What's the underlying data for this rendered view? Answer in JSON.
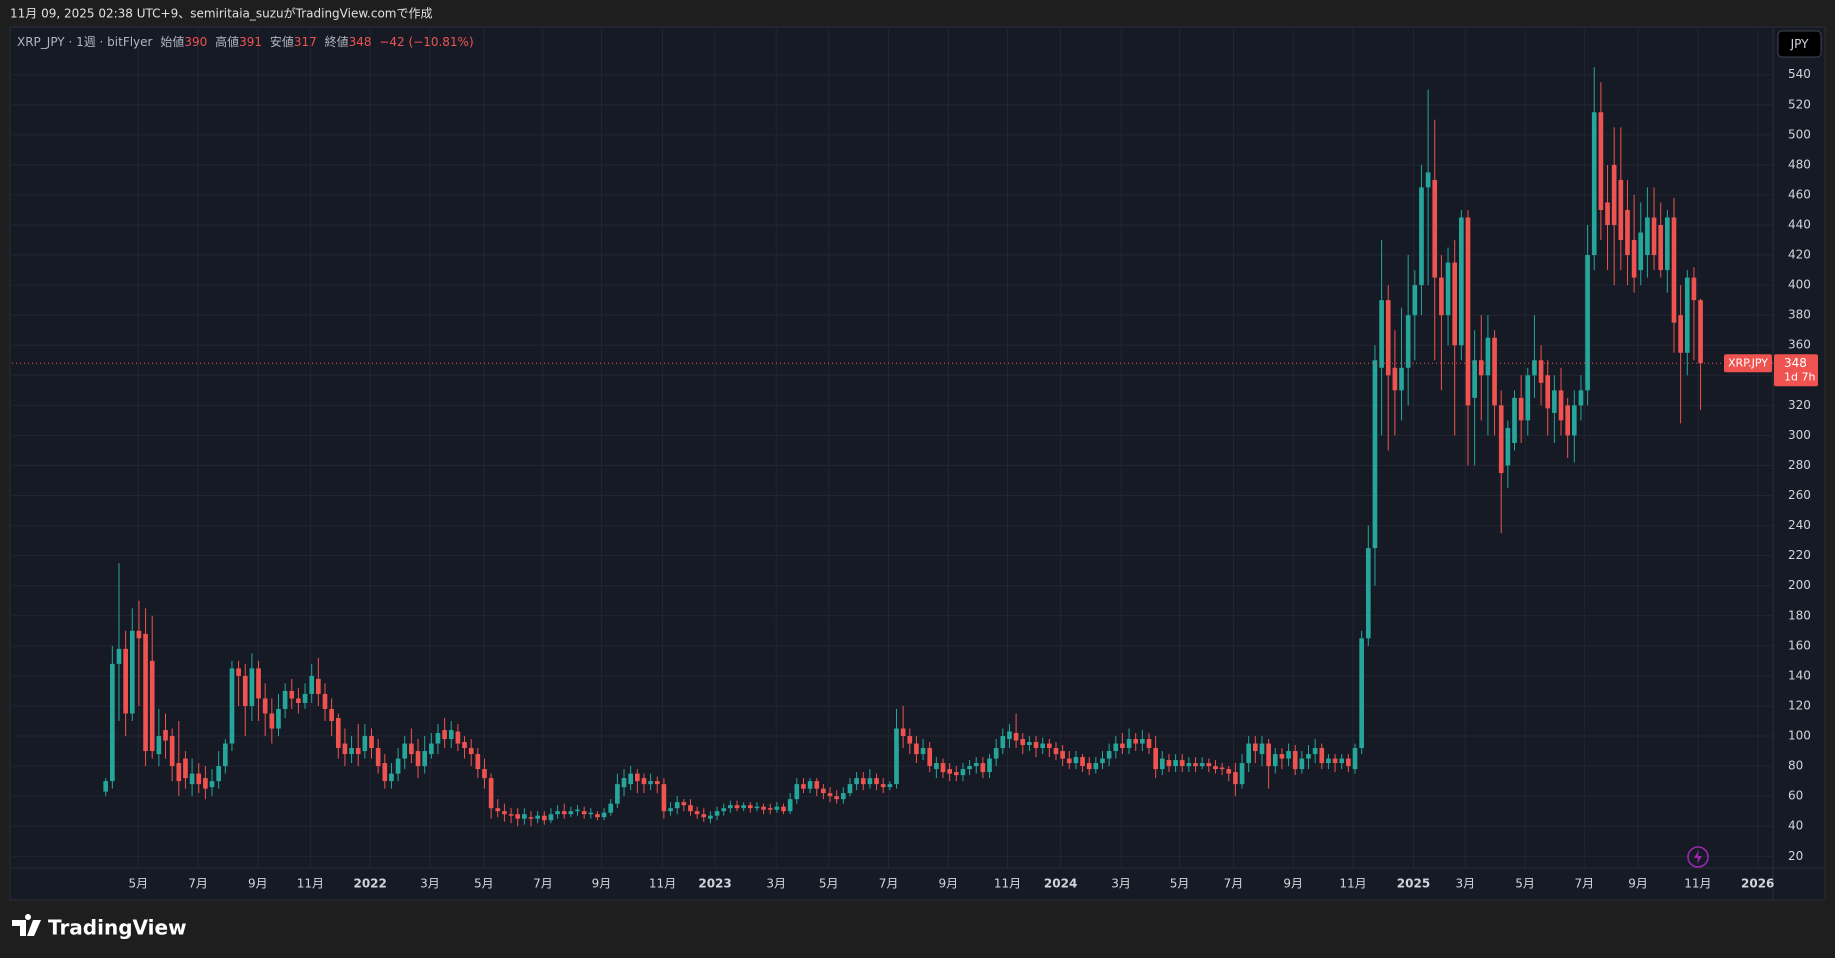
{
  "byline": "11月 09, 2025 02:38 UTC+9、semiritaia_suzuがTradingView.comで作成",
  "footer_brand": "TradingView",
  "chart_data": {
    "type": "candlestick",
    "legend": {
      "symbol": "XRP_JPY · 1週 · bitFlyer",
      "open": "始値",
      "high": "高値",
      "low": "安値",
      "close": "終値",
      "change": "−42 (−10.81%)"
    },
    "currency": "JPY",
    "last_label": "XRP.JPY",
    "countdown": "1d 7h",
    "up_color": "#26a69a",
    "down_color": "#ef5350",
    "grid": true,
    "xlim": [
      -14.1,
      250.9
    ],
    "xticks": [
      {
        "value": 4.9,
        "label": "5月"
      },
      {
        "value": 13.9,
        "label": "7月"
      },
      {
        "value": 22.9,
        "label": "9月"
      },
      {
        "value": 30.8,
        "label": "11月"
      },
      {
        "value": 39.8,
        "label": "2022"
      },
      {
        "value": 48.8,
        "label": "3月"
      },
      {
        "value": 56.9,
        "label": "5月"
      },
      {
        "value": 65.8,
        "label": "7月"
      },
      {
        "value": 74.6,
        "label": "9月"
      },
      {
        "value": 83.8,
        "label": "11月"
      },
      {
        "value": 91.7,
        "label": "2023"
      },
      {
        "value": 100.9,
        "label": "3月"
      },
      {
        "value": 108.8,
        "label": "5月"
      },
      {
        "value": 117.8,
        "label": "7月"
      },
      {
        "value": 126.8,
        "label": "9月"
      },
      {
        "value": 135.7,
        "label": "11月"
      },
      {
        "value": 143.7,
        "label": "2024"
      },
      {
        "value": 152.8,
        "label": "3月"
      },
      {
        "value": 161.6,
        "label": "5月"
      },
      {
        "value": 169.7,
        "label": "7月"
      },
      {
        "value": 178.7,
        "label": "9月"
      },
      {
        "value": 187.7,
        "label": "11月"
      },
      {
        "value": 196.8,
        "label": "2025"
      },
      {
        "value": 204.6,
        "label": "3月"
      },
      {
        "value": 213.6,
        "label": "5月"
      },
      {
        "value": 222.5,
        "label": "7月"
      },
      {
        "value": 230.6,
        "label": "9月"
      },
      {
        "value": 239.6,
        "label": "11月"
      },
      {
        "value": 248.6,
        "label": "2026"
      }
    ],
    "ylim": [
      12.2,
      570.4
    ],
    "yticks": [
      20,
      40,
      60,
      80,
      100,
      120,
      140,
      160,
      180,
      200,
      220,
      240,
      260,
      280,
      300,
      320,
      340,
      360,
      380,
      400,
      420,
      440,
      460,
      480,
      500,
      520,
      540
    ],
    "candles": [
      [
        63,
        72,
        60,
        70
      ],
      [
        70,
        160,
        65,
        148
      ],
      [
        148,
        215,
        110,
        158
      ],
      [
        158,
        170,
        100,
        115
      ],
      [
        115,
        185,
        110,
        170
      ],
      [
        170,
        190,
        120,
        165
      ],
      [
        168,
        185,
        80,
        90
      ],
      [
        150,
        180,
        85,
        90
      ],
      [
        88,
        118,
        80,
        100
      ],
      [
        104,
        115,
        85,
        97
      ],
      [
        100,
        105,
        70,
        80
      ],
      [
        82,
        110,
        60,
        70
      ],
      [
        85,
        90,
        65,
        72
      ],
      [
        68,
        85,
        60,
        75
      ],
      [
        75,
        82,
        62,
        68
      ],
      [
        72,
        80,
        58,
        65
      ],
      [
        66,
        78,
        60,
        70
      ],
      [
        70,
        90,
        65,
        80
      ],
      [
        80,
        98,
        75,
        95
      ],
      [
        95,
        150,
        90,
        145
      ],
      [
        145,
        150,
        120,
        140
      ],
      [
        140,
        148,
        100,
        120
      ],
      [
        120,
        155,
        110,
        145
      ],
      [
        145,
        150,
        110,
        125
      ],
      [
        125,
        135,
        100,
        115
      ],
      [
        115,
        125,
        95,
        105
      ],
      [
        105,
        128,
        100,
        118
      ],
      [
        118,
        135,
        112,
        130
      ],
      [
        130,
        138,
        118,
        125
      ],
      [
        125,
        132,
        115,
        122
      ],
      [
        122,
        135,
        118,
        128
      ],
      [
        128,
        148,
        122,
        140
      ],
      [
        138,
        152,
        120,
        128
      ],
      [
        128,
        135,
        110,
        118
      ],
      [
        118,
        125,
        100,
        110
      ],
      [
        112,
        115,
        85,
        92
      ],
      [
        95,
        105,
        80,
        88
      ],
      [
        88,
        100,
        82,
        92
      ],
      [
        92,
        108,
        80,
        88
      ],
      [
        90,
        108,
        85,
        100
      ],
      [
        100,
        105,
        85,
        92
      ],
      [
        92,
        98,
        75,
        80
      ],
      [
        82,
        88,
        65,
        70
      ],
      [
        70,
        82,
        65,
        75
      ],
      [
        75,
        92,
        70,
        85
      ],
      [
        85,
        100,
        78,
        95
      ],
      [
        95,
        105,
        82,
        88
      ],
      [
        90,
        98,
        72,
        80
      ],
      [
        80,
        100,
        75,
        90
      ],
      [
        88,
        102,
        85,
        95
      ],
      [
        95,
        108,
        88,
        102
      ],
      [
        104,
        112,
        92,
        98
      ],
      [
        98,
        110,
        92,
        104
      ],
      [
        103,
        108,
        90,
        95
      ],
      [
        96,
        100,
        85,
        92
      ],
      [
        92,
        98,
        80,
        88
      ],
      [
        88,
        92,
        72,
        78
      ],
      [
        78,
        85,
        65,
        72
      ],
      [
        72,
        75,
        45,
        52
      ],
      [
        52,
        58,
        46,
        50
      ],
      [
        50,
        55,
        43,
        48
      ],
      [
        48,
        52,
        42,
        47
      ],
      [
        48,
        52,
        40,
        45
      ],
      [
        45,
        52,
        41,
        48
      ],
      [
        46,
        50,
        40,
        45
      ],
      [
        45,
        50,
        42,
        47
      ],
      [
        47,
        50,
        41,
        44
      ],
      [
        44,
        52,
        42,
        48
      ],
      [
        48,
        54,
        45,
        50
      ],
      [
        50,
        55,
        45,
        48
      ],
      [
        48,
        53,
        46,
        50
      ],
      [
        50,
        54,
        47,
        51
      ],
      [
        50,
        53,
        45,
        48
      ],
      [
        48,
        52,
        45,
        49
      ],
      [
        48,
        50,
        44,
        46
      ],
      [
        46,
        52,
        44,
        49
      ],
      [
        49,
        58,
        47,
        55
      ],
      [
        55,
        75,
        52,
        68
      ],
      [
        66,
        78,
        60,
        72
      ],
      [
        68,
        80,
        64,
        75
      ],
      [
        75,
        78,
        62,
        70
      ],
      [
        72,
        75,
        62,
        68
      ],
      [
        68,
        75,
        64,
        70
      ],
      [
        70,
        73,
        62,
        68
      ],
      [
        68,
        72,
        45,
        50
      ],
      [
        50,
        56,
        47,
        52
      ],
      [
        52,
        60,
        48,
        56
      ],
      [
        56,
        58,
        50,
        54
      ],
      [
        54,
        58,
        47,
        50
      ],
      [
        50,
        53,
        45,
        48
      ],
      [
        48,
        52,
        43,
        46
      ],
      [
        45,
        50,
        42,
        47
      ],
      [
        47,
        53,
        44,
        50
      ],
      [
        50,
        55,
        47,
        52
      ],
      [
        52,
        57,
        49,
        54
      ],
      [
        54,
        57,
        50,
        52
      ],
      [
        52,
        56,
        50,
        54
      ],
      [
        54,
        56,
        49,
        52
      ],
      [
        52,
        56,
        50,
        53
      ],
      [
        53,
        55,
        48,
        51
      ],
      [
        52,
        55,
        48,
        51
      ],
      [
        51,
        56,
        49,
        53
      ],
      [
        53,
        55,
        48,
        50
      ],
      [
        50,
        62,
        48,
        58
      ],
      [
        58,
        72,
        55,
        68
      ],
      [
        68,
        72,
        62,
        65
      ],
      [
        65,
        72,
        62,
        70
      ],
      [
        70,
        72,
        60,
        65
      ],
      [
        65,
        68,
        58,
        62
      ],
      [
        62,
        66,
        56,
        60
      ],
      [
        60,
        64,
        55,
        58
      ],
      [
        58,
        66,
        55,
        62
      ],
      [
        62,
        72,
        60,
        68
      ],
      [
        68,
        76,
        64,
        72
      ],
      [
        72,
        76,
        64,
        68
      ],
      [
        68,
        78,
        65,
        72
      ],
      [
        72,
        75,
        64,
        68
      ],
      [
        68,
        72,
        62,
        66
      ],
      [
        66,
        70,
        64,
        68
      ],
      [
        68,
        118,
        65,
        105
      ],
      [
        105,
        120,
        92,
        100
      ],
      [
        100,
        105,
        88,
        95
      ],
      [
        95,
        100,
        82,
        88
      ],
      [
        88,
        98,
        84,
        92
      ],
      [
        92,
        96,
        76,
        80
      ],
      [
        78,
        86,
        72,
        82
      ],
      [
        82,
        85,
        72,
        76
      ],
      [
        78,
        82,
        70,
        75
      ],
      [
        76,
        80,
        70,
        74
      ],
      [
        74,
        82,
        70,
        78
      ],
      [
        78,
        84,
        74,
        80
      ],
      [
        80,
        86,
        75,
        82
      ],
      [
        82,
        86,
        72,
        76
      ],
      [
        76,
        88,
        72,
        85
      ],
      [
        85,
        98,
        80,
        92
      ],
      [
        92,
        105,
        88,
        100
      ],
      [
        98,
        108,
        92,
        103
      ],
      [
        102,
        115,
        92,
        97
      ],
      [
        98,
        102,
        88,
        94
      ],
      [
        94,
        100,
        90,
        96
      ],
      [
        96,
        100,
        86,
        92
      ],
      [
        92,
        99,
        88,
        95
      ],
      [
        95,
        98,
        86,
        92
      ],
      [
        92,
        96,
        84,
        88
      ],
      [
        90,
        94,
        80,
        85
      ],
      [
        85,
        90,
        78,
        82
      ],
      [
        82,
        90,
        78,
        86
      ],
      [
        86,
        88,
        76,
        80
      ],
      [
        82,
        86,
        74,
        78
      ],
      [
        78,
        86,
        75,
        82
      ],
      [
        82,
        90,
        78,
        85
      ],
      [
        85,
        95,
        80,
        90
      ],
      [
        90,
        100,
        85,
        95
      ],
      [
        95,
        102,
        88,
        92
      ],
      [
        92,
        105,
        88,
        98
      ],
      [
        98,
        102,
        90,
        95
      ],
      [
        95,
        104,
        90,
        98
      ],
      [
        98,
        102,
        88,
        92
      ],
      [
        92,
        100,
        72,
        78
      ],
      [
        78,
        90,
        74,
        85
      ],
      [
        84,
        88,
        76,
        80
      ],
      [
        80,
        88,
        76,
        84
      ],
      [
        84,
        88,
        76,
        80
      ],
      [
        80,
        86,
        76,
        82
      ],
      [
        82,
        86,
        76,
        80
      ],
      [
        80,
        86,
        78,
        82
      ],
      [
        82,
        85,
        76,
        80
      ],
      [
        80,
        84,
        75,
        78
      ],
      [
        79,
        82,
        74,
        78
      ],
      [
        78,
        80,
        70,
        75
      ],
      [
        76,
        82,
        60,
        68
      ],
      [
        68,
        88,
        65,
        82
      ],
      [
        82,
        100,
        76,
        95
      ],
      [
        95,
        100,
        82,
        90
      ],
      [
        88,
        100,
        80,
        95
      ],
      [
        95,
        98,
        65,
        80
      ],
      [
        80,
        92,
        75,
        88
      ],
      [
        88,
        92,
        78,
        85
      ],
      [
        85,
        95,
        80,
        90
      ],
      [
        90,
        94,
        74,
        78
      ],
      [
        78,
        90,
        75,
        85
      ],
      [
        85,
        94,
        78,
        88
      ],
      [
        88,
        98,
        82,
        92
      ],
      [
        92,
        95,
        78,
        82
      ],
      [
        82,
        88,
        78,
        85
      ],
      [
        85,
        88,
        76,
        82
      ],
      [
        82,
        88,
        78,
        85
      ],
      [
        85,
        88,
        76,
        80
      ],
      [
        78,
        95,
        75,
        92
      ],
      [
        92,
        170,
        88,
        165
      ],
      [
        165,
        240,
        160,
        225
      ],
      [
        225,
        360,
        200,
        350
      ],
      [
        345,
        430,
        300,
        390
      ],
      [
        390,
        400,
        290,
        340
      ],
      [
        345,
        370,
        300,
        330
      ],
      [
        330,
        385,
        310,
        345
      ],
      [
        345,
        420,
        320,
        380
      ],
      [
        380,
        410,
        350,
        400
      ],
      [
        400,
        480,
        380,
        465
      ],
      [
        465,
        530,
        400,
        475
      ],
      [
        470,
        510,
        350,
        405
      ],
      [
        405,
        420,
        330,
        380
      ],
      [
        380,
        425,
        360,
        415
      ],
      [
        415,
        430,
        300,
        360
      ],
      [
        360,
        450,
        350,
        445
      ],
      [
        445,
        450,
        280,
        320
      ],
      [
        325,
        370,
        280,
        350
      ],
      [
        350,
        380,
        310,
        340
      ],
      [
        340,
        380,
        300,
        365
      ],
      [
        365,
        370,
        300,
        320
      ],
      [
        320,
        330,
        235,
        275
      ],
      [
        280,
        310,
        265,
        305
      ],
      [
        295,
        330,
        290,
        325
      ],
      [
        325,
        340,
        295,
        310
      ],
      [
        310,
        345,
        300,
        340
      ],
      [
        340,
        380,
        325,
        350
      ],
      [
        350,
        360,
        320,
        335
      ],
      [
        340,
        350,
        300,
        318
      ],
      [
        315,
        340,
        295,
        330
      ],
      [
        330,
        345,
        300,
        310
      ],
      [
        320,
        325,
        285,
        300
      ],
      [
        300,
        330,
        282,
        320
      ],
      [
        320,
        340,
        310,
        330
      ],
      [
        330,
        440,
        320,
        420
      ],
      [
        420,
        545,
        410,
        515
      ],
      [
        515,
        535,
        430,
        450
      ],
      [
        455,
        480,
        410,
        440
      ],
      [
        480,
        505,
        400,
        440
      ],
      [
        470,
        505,
        410,
        430
      ],
      [
        450,
        470,
        400,
        420
      ],
      [
        430,
        460,
        395,
        405
      ],
      [
        410,
        455,
        400,
        435
      ],
      [
        420,
        465,
        405,
        445
      ],
      [
        445,
        465,
        410,
        420
      ],
      [
        440,
        455,
        405,
        410
      ],
      [
        410,
        450,
        395,
        445
      ],
      [
        445,
        458,
        355,
        375
      ],
      [
        380,
        400,
        308,
        355
      ],
      [
        355,
        410,
        340,
        405
      ],
      [
        405,
        412,
        350,
        390
      ],
      [
        390,
        391,
        317,
        348
      ]
    ]
  }
}
